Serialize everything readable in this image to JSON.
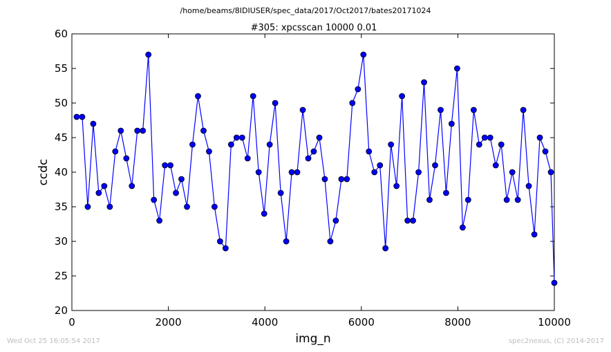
{
  "figure": {
    "suptitle": "/home/beams/8IDIUSER/spec_data/2017/Oct2017/bates20171024",
    "footer_left": "Wed Oct 25 16:05:54 2017",
    "footer_right": "spec2nexus, (C) 2014-2017"
  },
  "chart_data": {
    "type": "line",
    "title": "#305: xpcsscan 10000 0.01",
    "xlabel": "img_n",
    "ylabel": "ccdc",
    "xlim": [
      0,
      10000
    ],
    "ylim": [
      20,
      60
    ],
    "xticks": [
      0,
      2000,
      4000,
      6000,
      8000,
      10000
    ],
    "yticks": [
      20,
      25,
      30,
      35,
      40,
      45,
      50,
      55,
      60
    ],
    "line_color": "#0000ff",
    "marker_color": "#0000ff",
    "marker": "circle",
    "grid": false,
    "series": [
      {
        "x": [
          100,
          214,
          329,
          443,
          557,
          671,
          786,
          900,
          1014,
          1129,
          1243,
          1357,
          1471,
          1586,
          1700,
          1814,
          1929,
          2043,
          2157,
          2271,
          2386,
          2500,
          2614,
          2729,
          2843,
          2957,
          3071,
          3186,
          3300,
          3414,
          3529,
          3643,
          3757,
          3871,
          3986,
          4100,
          4214,
          4329,
          4443,
          4557,
          4671,
          4786,
          4900,
          5014,
          5129,
          5243,
          5357,
          5471,
          5586,
          5700,
          5814,
          5929,
          6043,
          6157,
          6271,
          6386,
          6500,
          6614,
          6729,
          6843,
          6957,
          7071,
          7186,
          7300,
          7414,
          7529,
          7643,
          7757,
          7871,
          7986,
          8100,
          8214,
          8329,
          8443,
          8557,
          8671,
          8786,
          8900,
          9014,
          9129,
          9243,
          9357,
          9471,
          9586,
          9700,
          9814,
          9929,
          10000
        ],
        "y": [
          48,
          48,
          35,
          47,
          37,
          38,
          35,
          43,
          46,
          42,
          38,
          46,
          46,
          57,
          36,
          33,
          41,
          41,
          37,
          39,
          35,
          44,
          51,
          46,
          43,
          35,
          30,
          29,
          44,
          45,
          45,
          42,
          51,
          40,
          34,
          44,
          50,
          37,
          30,
          40,
          40,
          49,
          42,
          43,
          45,
          39,
          30,
          33,
          39,
          39,
          50,
          52,
          57,
          43,
          40,
          41,
          29,
          44,
          38,
          51,
          33,
          33,
          40,
          53,
          36,
          41,
          49,
          37,
          47,
          55,
          32,
          36,
          49,
          44,
          45,
          45,
          41,
          44,
          36,
          40,
          36,
          49,
          38,
          31,
          45,
          43,
          40,
          24
        ]
      }
    ]
  }
}
